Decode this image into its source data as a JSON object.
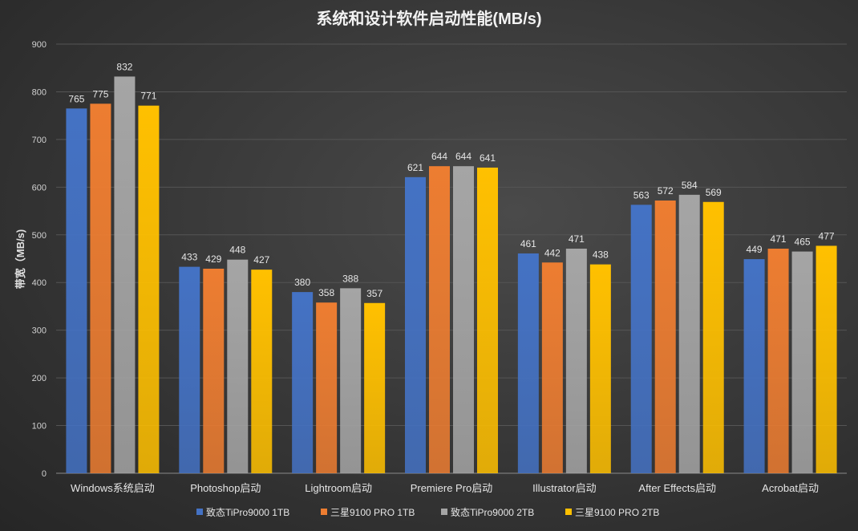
{
  "chart_data": {
    "type": "bar",
    "title": "系统和设计软件启动性能(MB/s)",
    "xlabel": "",
    "ylabel": "带宽（MB/s)",
    "ylim": [
      0,
      900
    ],
    "yticks": [
      0,
      100,
      200,
      300,
      400,
      500,
      600,
      700,
      800,
      900
    ],
    "grid": true,
    "legend_position": "bottom",
    "categories": [
      "Windows系统启动",
      "Photoshop启动",
      "Lightroom启动",
      "Premiere Pro启动",
      "Illustrator启动",
      "After Effects启动",
      "Acrobat启动"
    ],
    "series": [
      {
        "name": "致态TiPro9000 1TB",
        "color": "#4472c4",
        "values": [
          765,
          433,
          380,
          621,
          461,
          563,
          449
        ]
      },
      {
        "name": "三星9100 PRO 1TB",
        "color": "#ed7d31",
        "values": [
          775,
          429,
          358,
          644,
          442,
          572,
          471
        ]
      },
      {
        "name": "致态TiPro9000 2TB",
        "color": "#a5a5a5",
        "values": [
          832,
          448,
          388,
          644,
          471,
          584,
          465
        ]
      },
      {
        "name": "三星9100 PRO 2TB",
        "color": "#ffc000",
        "values": [
          771,
          427,
          357,
          641,
          438,
          569,
          477
        ]
      }
    ]
  }
}
